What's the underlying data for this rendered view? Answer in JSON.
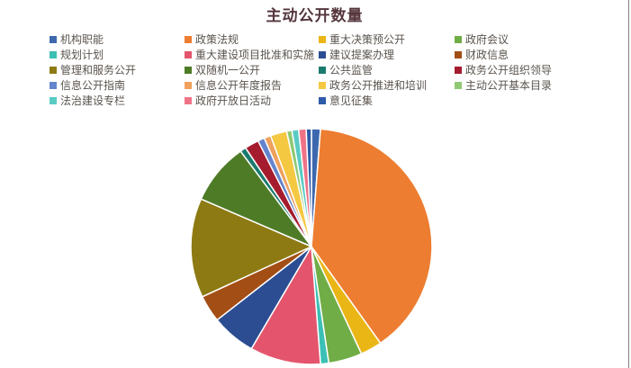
{
  "chart_data": {
    "type": "pie",
    "title": "主动公开数量",
    "legend_position": "top",
    "data_labels_shown": false,
    "values_are_percent_estimates": true,
    "series": [
      {
        "name": "机构职能",
        "value": 1.2,
        "color": "#3d68ae"
      },
      {
        "name": "政策法规",
        "value": 39.1,
        "color": "#ed7d31"
      },
      {
        "name": "重大决策预公开",
        "value": 2.9,
        "color": "#eab616"
      },
      {
        "name": "政府会议",
        "value": 4.5,
        "color": "#70ad47"
      },
      {
        "name": "规划计划",
        "value": 1.1,
        "color": "#3cbfb4"
      },
      {
        "name": "重大建设项目批准和实施",
        "value": 9.5,
        "color": "#e4556d"
      },
      {
        "name": "建议提案办理",
        "value": 6.0,
        "color": "#2c4d92"
      },
      {
        "name": "财政信息",
        "value": 3.7,
        "color": "#a34e15"
      },
      {
        "name": "管理和服务公开",
        "value": 13.6,
        "color": "#8d7a12"
      },
      {
        "name": "双随机一公开",
        "value": 8.4,
        "color": "#4e7b26"
      },
      {
        "name": "公共监管",
        "value": 0.8,
        "color": "#1b7a6e"
      },
      {
        "name": "政务公开组织领导",
        "value": 1.9,
        "color": "#a41c2e"
      },
      {
        "name": "信息公开指南",
        "value": 0.9,
        "color": "#6484cd"
      },
      {
        "name": "信息公开年度报告",
        "value": 0.9,
        "color": "#efa05c"
      },
      {
        "name": "政务公开推进和培训",
        "value": 2.2,
        "color": "#f5c842"
      },
      {
        "name": "主动公开基本目录",
        "value": 0.7,
        "color": "#8fc973"
      },
      {
        "name": "法治建设专栏",
        "value": 0.9,
        "color": "#59cbc3"
      },
      {
        "name": "政府开放日活动",
        "value": 1.0,
        "color": "#ee7386"
      },
      {
        "name": "意见征集",
        "value": 0.7,
        "color": "#2d5ba8"
      }
    ]
  }
}
